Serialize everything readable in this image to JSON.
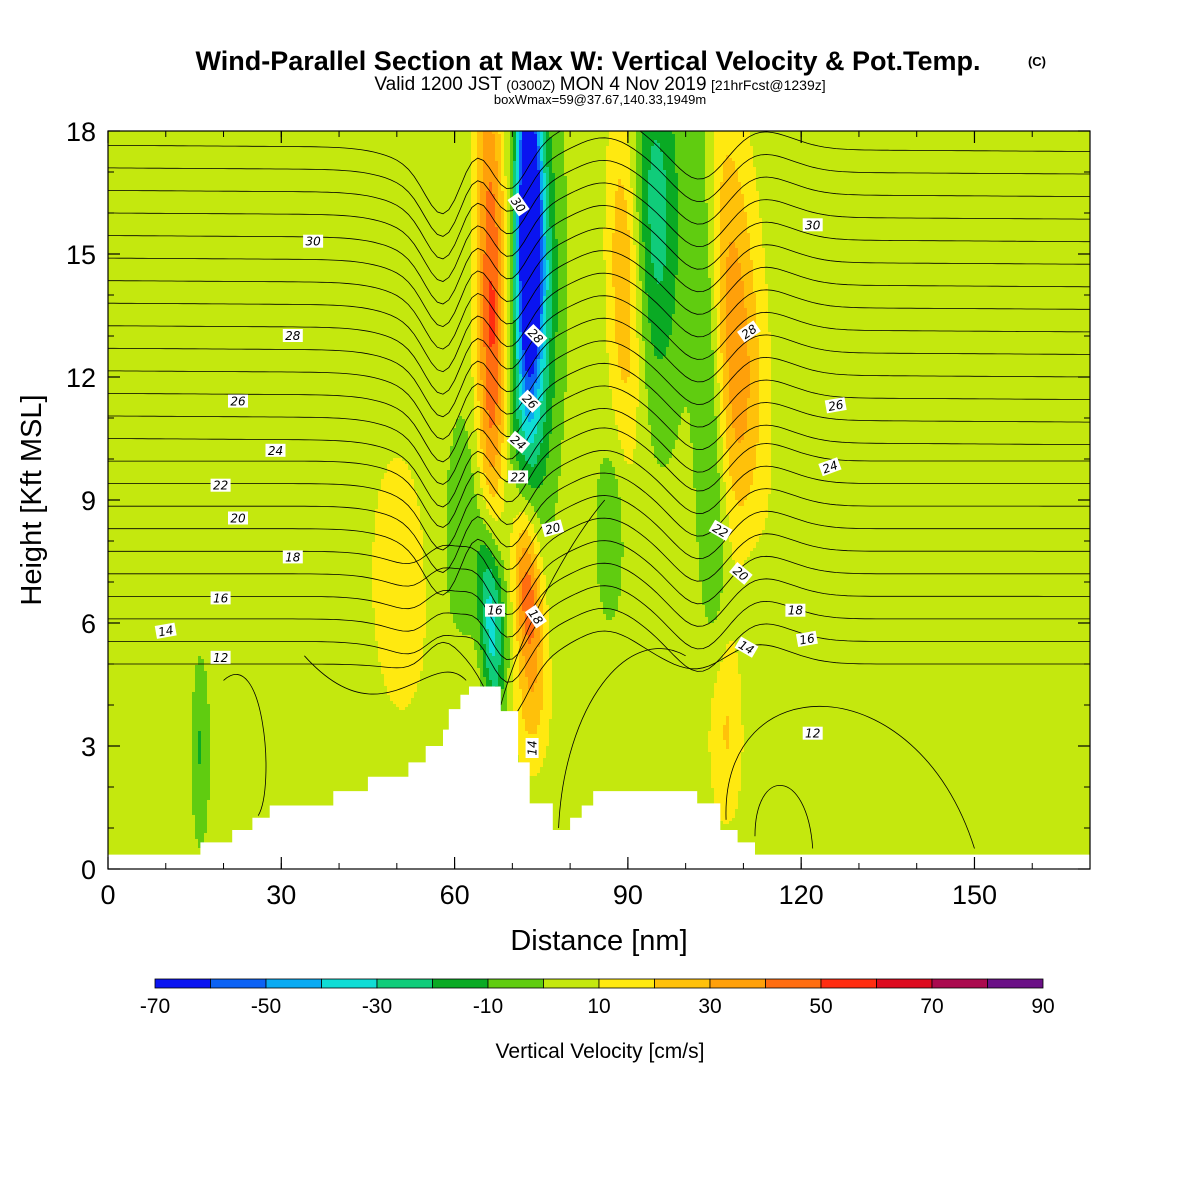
{
  "title": {
    "main": "Wind-Parallel Section at Max W: Vertical Velocity & Pot.Temp.",
    "copyright": "(C)",
    "valid_prefix": "Valid 1200 JST",
    "valid_utc": "(0300Z)",
    "valid_date": "MON 4 Nov 2019",
    "forecast": "[21hrFcst@1239z]",
    "box": "boxWmax=59@37.67,140.33,1949m"
  },
  "chart_data": {
    "type": "heatmap",
    "xlabel": "Distance [nm]",
    "ylabel": "Height [Kft MSL]",
    "xlim": [
      0,
      170
    ],
    "ylim": [
      0,
      18
    ],
    "x_ticks": [
      {
        "value": 0,
        "label": "0"
      },
      {
        "value": 30,
        "label": "30"
      },
      {
        "value": 60,
        "label": "60"
      },
      {
        "value": 90,
        "label": "90"
      },
      {
        "value": 120,
        "label": "120"
      },
      {
        "value": 150,
        "label": "150"
      }
    ],
    "y_ticks": [
      {
        "value": 0,
        "label": "0"
      },
      {
        "value": 3,
        "label": "3"
      },
      {
        "value": 6,
        "label": "6"
      },
      {
        "value": 9,
        "label": "9"
      },
      {
        "value": 12,
        "label": "12"
      },
      {
        "value": 15,
        "label": "15"
      },
      {
        "value": 18,
        "label": "18"
      }
    ],
    "colorbar": {
      "label": "Vertical Velocity [cm/s]",
      "levels": [
        -70,
        -60,
        -50,
        -40,
        -30,
        -20,
        -10,
        0,
        10,
        20,
        30,
        40,
        50,
        60,
        70,
        80,
        90
      ],
      "tick_labels": [
        {
          "value": -70,
          "label": "-70"
        },
        {
          "value": -50,
          "label": "-50"
        },
        {
          "value": -30,
          "label": "-30"
        },
        {
          "value": -10,
          "label": "-10"
        },
        {
          "value": 10,
          "label": "10"
        },
        {
          "value": 30,
          "label": "30"
        },
        {
          "value": 50,
          "label": "50"
        },
        {
          "value": 70,
          "label": "70"
        },
        {
          "value": 90,
          "label": "90"
        }
      ],
      "colors": [
        "#0a14f0",
        "#0c62f4",
        "#0aaaf2",
        "#10ddd5",
        "#10cc7a",
        "#0aaa24",
        "#60cc10",
        "#c4e80e",
        "#ffe910",
        "#ffc10a",
        "#ffa00a",
        "#ff6d10",
        "#ff2d10",
        "#dd0a1e",
        "#aa0a4e",
        "#6a1086"
      ]
    },
    "terrain_profile": [
      [
        0,
        0.35
      ],
      [
        16,
        0.35
      ],
      [
        16,
        0.65
      ],
      [
        21.5,
        0.65
      ],
      [
        21.5,
        0.95
      ],
      [
        25,
        0.95
      ],
      [
        25,
        1.25
      ],
      [
        28,
        1.25
      ],
      [
        28,
        1.55
      ],
      [
        39,
        1.55
      ],
      [
        39,
        1.9
      ],
      [
        45,
        1.9
      ],
      [
        45,
        2.25
      ],
      [
        52,
        2.25
      ],
      [
        52,
        2.6
      ],
      [
        55,
        2.6
      ],
      [
        55,
        3.0
      ],
      [
        58,
        3.0
      ],
      [
        58,
        3.4
      ],
      [
        59,
        3.4
      ],
      [
        59,
        3.9
      ],
      [
        61,
        3.9
      ],
      [
        61,
        4.25
      ],
      [
        62.5,
        4.25
      ],
      [
        62.5,
        4.45
      ],
      [
        68,
        4.45
      ],
      [
        68,
        3.85
      ],
      [
        71,
        3.85
      ],
      [
        71,
        2.6
      ],
      [
        73,
        2.6
      ],
      [
        73,
        1.6
      ],
      [
        77,
        1.6
      ],
      [
        77,
        0.95
      ],
      [
        80,
        0.95
      ],
      [
        80,
        1.25
      ],
      [
        82,
        1.25
      ],
      [
        82,
        1.55
      ],
      [
        84,
        1.55
      ],
      [
        84,
        1.9
      ],
      [
        102,
        1.9
      ],
      [
        102,
        1.6
      ],
      [
        106,
        1.6
      ],
      [
        106,
        0.95
      ],
      [
        109,
        0.95
      ],
      [
        109,
        0.65
      ],
      [
        112,
        0.65
      ],
      [
        112,
        0.35
      ],
      [
        170,
        0.35
      ]
    ],
    "contour_labels": [
      {
        "x": 71,
        "y": 16.2,
        "value": "30",
        "angle": 55
      },
      {
        "x": 35.5,
        "y": 15.3,
        "value": "30",
        "angle": 0
      },
      {
        "x": 122,
        "y": 15.7,
        "value": "30",
        "angle": 0
      },
      {
        "x": 32,
        "y": 13.0,
        "value": "28",
        "angle": 0
      },
      {
        "x": 74,
        "y": 13.0,
        "value": "28",
        "angle": 45
      },
      {
        "x": 111,
        "y": 13.1,
        "value": "28",
        "angle": -35
      },
      {
        "x": 22.5,
        "y": 11.4,
        "value": "26",
        "angle": 0
      },
      {
        "x": 73,
        "y": 11.4,
        "value": "26",
        "angle": 45
      },
      {
        "x": 126,
        "y": 11.3,
        "value": "26",
        "angle": -10
      },
      {
        "x": 29,
        "y": 10.2,
        "value": "24",
        "angle": 0
      },
      {
        "x": 71,
        "y": 10.4,
        "value": "24",
        "angle": 40
      },
      {
        "x": 125,
        "y": 9.8,
        "value": "24",
        "angle": -20
      },
      {
        "x": 19.5,
        "y": 9.35,
        "value": "22",
        "angle": 0
      },
      {
        "x": 71,
        "y": 9.55,
        "value": "22",
        "angle": 0
      },
      {
        "x": 106,
        "y": 8.25,
        "value": "22",
        "angle": 30
      },
      {
        "x": 22.5,
        "y": 8.55,
        "value": "20",
        "angle": 0
      },
      {
        "x": 77,
        "y": 8.3,
        "value": "20",
        "angle": -15
      },
      {
        "x": 109.5,
        "y": 7.2,
        "value": "20",
        "angle": 40
      },
      {
        "x": 32,
        "y": 7.6,
        "value": "18",
        "angle": 0
      },
      {
        "x": 74,
        "y": 6.15,
        "value": "18",
        "angle": 55
      },
      {
        "x": 119,
        "y": 6.3,
        "value": "18",
        "angle": 0
      },
      {
        "x": 19.5,
        "y": 6.6,
        "value": "16",
        "angle": 0
      },
      {
        "x": 67,
        "y": 6.3,
        "value": "16",
        "angle": 0
      },
      {
        "x": 121,
        "y": 5.6,
        "value": "16",
        "angle": -10
      },
      {
        "x": 10,
        "y": 5.8,
        "value": "14",
        "angle": -10
      },
      {
        "x": 110.5,
        "y": 5.4,
        "value": "14",
        "angle": 30
      },
      {
        "x": 73.5,
        "y": 2.95,
        "value": "14",
        "angle": -90
      },
      {
        "x": 19.5,
        "y": 5.15,
        "value": "12",
        "angle": 0
      },
      {
        "x": 122,
        "y": 3.3,
        "value": "12",
        "angle": 0
      }
    ]
  }
}
